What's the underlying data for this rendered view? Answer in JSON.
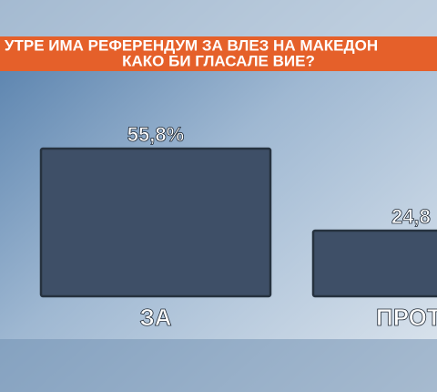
{
  "chart_data": {
    "type": "bar",
    "title": [
      "УТРЕ ИМА РЕФЕРЕНДУМ ЗА ВЛЕЗ НА МАКЕДОН",
      "КАКО БИ ГЛАСАЛЕ ВИЕ?"
    ],
    "categories": [
      "ЗА",
      "ПРОТ"
    ],
    "values": [
      55.8,
      24.8
    ],
    "value_labels": [
      "55,8%",
      "24,8"
    ],
    "color": "#3e4f67"
  }
}
